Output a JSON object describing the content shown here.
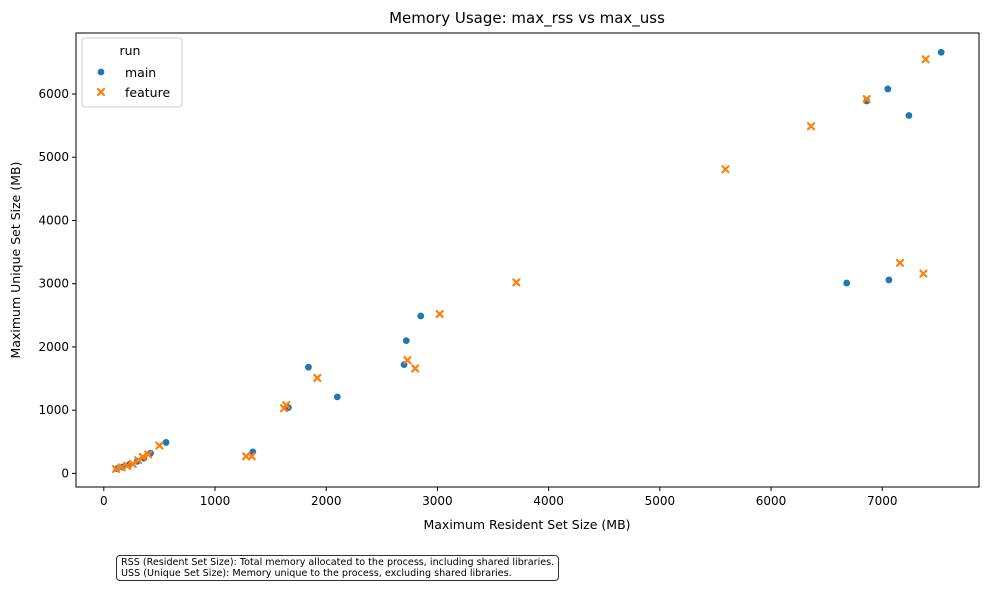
{
  "chart_data": {
    "type": "scatter",
    "title": "Memory Usage: max_rss vs max_uss",
    "xlabel": "Maximum Resident Set Size (MB)",
    "ylabel": "Maximum Unique Set Size (MB)",
    "xlim": [
      -250,
      7870
    ],
    "ylim": [
      -215,
      6965
    ],
    "xticks": [
      0,
      1000,
      2000,
      3000,
      4000,
      5000,
      6000,
      7000
    ],
    "yticks": [
      0,
      1000,
      2000,
      3000,
      4000,
      5000,
      6000
    ],
    "grid": false,
    "legend": {
      "title": "run",
      "placement": "top-left"
    },
    "series": [
      {
        "name": "main",
        "marker": "circle",
        "color": "#1f77b4",
        "points": [
          [
            120,
            75
          ],
          [
            170,
            100
          ],
          [
            230,
            140
          ],
          [
            300,
            190
          ],
          [
            360,
            240
          ],
          [
            420,
            320
          ],
          [
            560,
            490
          ],
          [
            1340,
            340
          ],
          [
            1660,
            1040
          ],
          [
            1840,
            1680
          ],
          [
            2100,
            1210
          ],
          [
            2700,
            1720
          ],
          [
            2720,
            2100
          ],
          [
            2850,
            2490
          ],
          [
            6680,
            3010
          ],
          [
            7060,
            3060
          ],
          [
            6860,
            5890
          ],
          [
            7050,
            6080
          ],
          [
            7240,
            5660
          ],
          [
            7530,
            6660
          ]
        ]
      },
      {
        "name": "feature",
        "marker": "x",
        "color": "#ff7f0e",
        "points": [
          [
            110,
            70
          ],
          [
            160,
            95
          ],
          [
            210,
            120
          ],
          [
            260,
            150
          ],
          [
            310,
            210
          ],
          [
            350,
            260
          ],
          [
            400,
            300
          ],
          [
            500,
            440
          ],
          [
            1280,
            270
          ],
          [
            1330,
            270
          ],
          [
            1620,
            1030
          ],
          [
            1640,
            1080
          ],
          [
            1920,
            1510
          ],
          [
            2730,
            1790
          ],
          [
            2800,
            1660
          ],
          [
            3020,
            2520
          ],
          [
            3710,
            3020
          ],
          [
            5590,
            4810
          ],
          [
            6360,
            5490
          ],
          [
            6860,
            5920
          ],
          [
            7160,
            3330
          ],
          [
            7370,
            3160
          ],
          [
            7390,
            6550
          ]
        ]
      }
    ],
    "note_lines": [
      "RSS (Resident Set Size): Total memory allocated to the process, including shared libraries.",
      "USS (Unique Set Size): Memory unique to the process, excluding shared libraries."
    ]
  }
}
